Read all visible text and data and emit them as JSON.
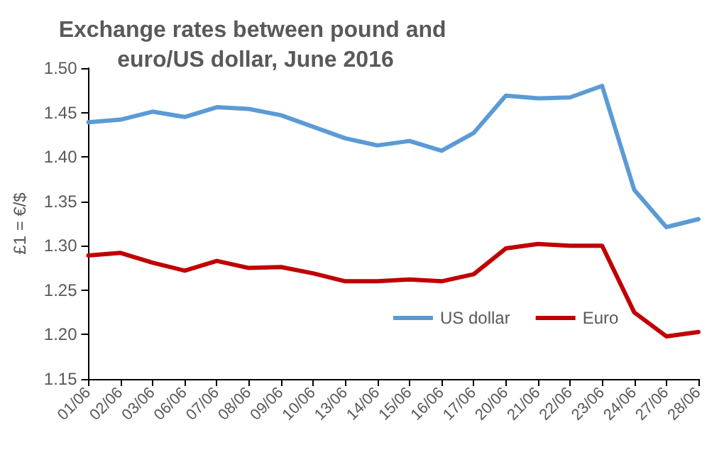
{
  "chart_data": {
    "type": "line",
    "title": "Exchange rates between pound and euro/US dollar, June 2016",
    "ylabel": "£1 = €/$",
    "categories": [
      "01/06",
      "02/06",
      "03/06",
      "06/06",
      "07/06",
      "08/06",
      "09/06",
      "10/06",
      "13/06",
      "14/06",
      "15/06",
      "16/06",
      "17/06",
      "20/06",
      "21/06",
      "22/06",
      "23/06",
      "24/06",
      "27/06",
      "28/06"
    ],
    "series": [
      {
        "name": "US dollar",
        "color": "#5b9bd5",
        "values": [
          1.439,
          1.442,
          1.451,
          1.445,
          1.456,
          1.454,
          1.447,
          1.434,
          1.421,
          1.413,
          1.418,
          1.407,
          1.427,
          1.469,
          1.466,
          1.467,
          1.48,
          1.363,
          1.321,
          1.33
        ]
      },
      {
        "name": "Euro",
        "color": "#c00000",
        "values": [
          1.289,
          1.292,
          1.281,
          1.272,
          1.283,
          1.275,
          1.276,
          1.269,
          1.26,
          1.26,
          1.262,
          1.26,
          1.268,
          1.297,
          1.302,
          1.3,
          1.3,
          1.225,
          1.198,
          1.203
        ]
      }
    ],
    "ylim": [
      1.15,
      1.5
    ],
    "yticks": [
      1.15,
      {
        "value": 1.2,
        "label": "1.20"
      },
      1.25,
      {
        "value": 1.3,
        "label": "1.30"
      },
      1.35,
      {
        "value": 1.4,
        "label": "1.40"
      },
      1.45,
      {
        "value": 1.5,
        "label": "1.50"
      }
    ],
    "grid": false,
    "legend": "bottom",
    "marker": "none",
    "line_style": "solid"
  }
}
